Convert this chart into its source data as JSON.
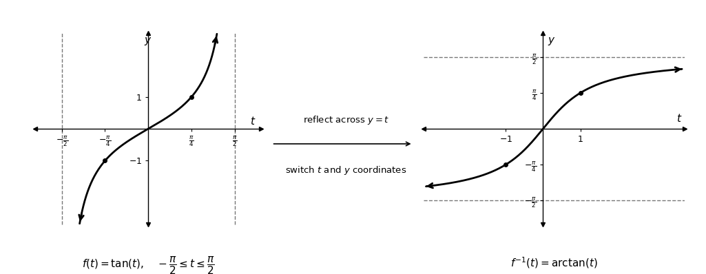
{
  "fig_width": 10.25,
  "fig_height": 3.98,
  "fig_dpi": 100,
  "bg_color": "#ffffff",
  "curve_color": "#000000",
  "axis_color": "#000000",
  "dashed_color": "#777777",
  "tan_xlim": [
    -2.05,
    2.05
  ],
  "tan_ylim": [
    -3.0,
    3.0
  ],
  "atan_xlim": [
    -3.2,
    3.8
  ],
  "atan_ylim": [
    -2.1,
    2.1
  ],
  "pi": 3.14159265358979,
  "label_f1": "$f(t) = \\tan(t), \\quad -\\dfrac{\\pi}{2} \\leq t \\leq \\dfrac{\\pi}{2}$",
  "label_f2": "$f^{-1}(t) = \\arctan(t)$",
  "arrow_top": "reflect across $y = t$",
  "arrow_bottom": "switch $t$ and $y$ coordinates",
  "font_size_label": 11,
  "font_size_tick": 9,
  "font_size_axis_label": 11,
  "line_width": 2.0
}
